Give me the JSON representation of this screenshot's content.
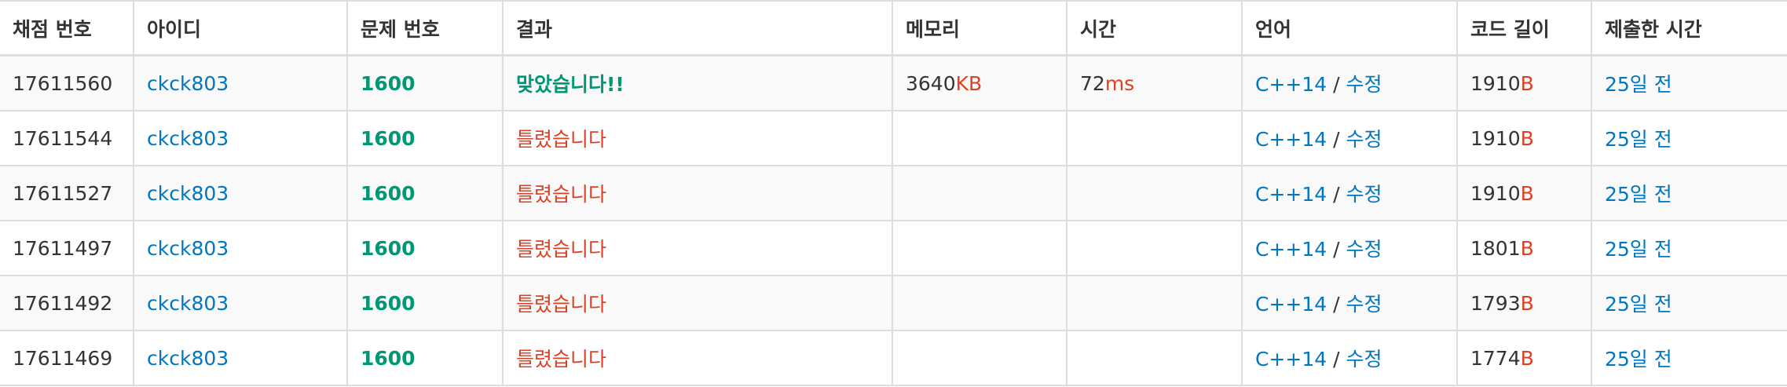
{
  "headers": {
    "submission_id": "채점 번호",
    "user_id": "아이디",
    "problem_id": "문제 번호",
    "result": "결과",
    "memory": "메모리",
    "time": "시간",
    "language": "언어",
    "code_length": "코드 길이",
    "submitted_at": "제출한 시간"
  },
  "colors": {
    "link": "#0076c0",
    "accepted": "#009874",
    "wrong": "#dd4124",
    "row_stripe": "#f9f9f9",
    "border": "#dddddd"
  },
  "rows": [
    {
      "id": "17611560",
      "user": "ckck803",
      "problem": "1600",
      "result": "맞았습니다!!",
      "result_type": "accepted",
      "memory": "3640",
      "memory_unit": "KB",
      "time": "72",
      "time_unit": "ms",
      "lang": "C++14",
      "lang_sep": " / ",
      "edit": "수정",
      "length": "1910",
      "length_unit": "B",
      "submitted": "25일 전"
    },
    {
      "id": "17611544",
      "user": "ckck803",
      "problem": "1600",
      "result": "틀렸습니다",
      "result_type": "wrong",
      "memory": "",
      "memory_unit": "",
      "time": "",
      "time_unit": "",
      "lang": "C++14",
      "lang_sep": " / ",
      "edit": "수정",
      "length": "1910",
      "length_unit": "B",
      "submitted": "25일 전"
    },
    {
      "id": "17611527",
      "user": "ckck803",
      "problem": "1600",
      "result": "틀렸습니다",
      "result_type": "wrong",
      "memory": "",
      "memory_unit": "",
      "time": "",
      "time_unit": "",
      "lang": "C++14",
      "lang_sep": " / ",
      "edit": "수정",
      "length": "1910",
      "length_unit": "B",
      "submitted": "25일 전"
    },
    {
      "id": "17611497",
      "user": "ckck803",
      "problem": "1600",
      "result": "틀렸습니다",
      "result_type": "wrong",
      "memory": "",
      "memory_unit": "",
      "time": "",
      "time_unit": "",
      "lang": "C++14",
      "lang_sep": " / ",
      "edit": "수정",
      "length": "1801",
      "length_unit": "B",
      "submitted": "25일 전"
    },
    {
      "id": "17611492",
      "user": "ckck803",
      "problem": "1600",
      "result": "틀렸습니다",
      "result_type": "wrong",
      "memory": "",
      "memory_unit": "",
      "time": "",
      "time_unit": "",
      "lang": "C++14",
      "lang_sep": " / ",
      "edit": "수정",
      "length": "1793",
      "length_unit": "B",
      "submitted": "25일 전"
    },
    {
      "id": "17611469",
      "user": "ckck803",
      "problem": "1600",
      "result": "틀렸습니다",
      "result_type": "wrong",
      "memory": "",
      "memory_unit": "",
      "time": "",
      "time_unit": "",
      "lang": "C++14",
      "lang_sep": " / ",
      "edit": "수정",
      "length": "1774",
      "length_unit": "B",
      "submitted": "25일 전"
    }
  ]
}
